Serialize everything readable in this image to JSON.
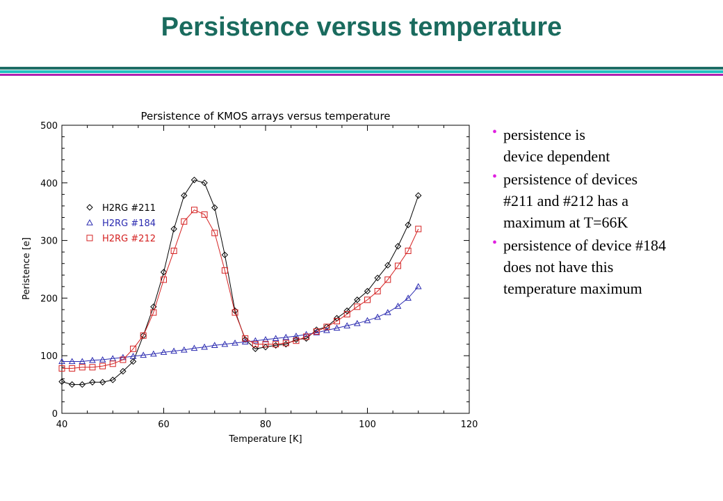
{
  "slide": {
    "title": "Persistence versus temperature",
    "colors": {
      "title": "#1a6b5e",
      "bullet": "#e020e0"
    },
    "rules": [
      "#1d6e66",
      "#22c0c0",
      "#b020b0"
    ]
  },
  "bullets": [
    {
      "text": "persistence is\ndevice dependent"
    },
    {
      "text": "persistence  of devices\n#211 and #212 has a\n maximum at T=66K"
    },
    {
      "text": "persistence of device #184\ndoes not have this\ntemperature maximum"
    }
  ],
  "chart_data": {
    "type": "line",
    "title": "Persistence of KMOS arrays versus temperature",
    "xlabel": "Temperature [K]",
    "ylabel": "Peristence [e]",
    "xlim": [
      40,
      120
    ],
    "ylim": [
      0,
      500
    ],
    "xticks": [
      40,
      60,
      80,
      100,
      120
    ],
    "yticks": [
      0,
      100,
      200,
      300,
      400,
      500
    ],
    "x": [
      40,
      42,
      44,
      46,
      48,
      50,
      52,
      54,
      56,
      58,
      60,
      62,
      64,
      66,
      68,
      70,
      72,
      74,
      76,
      78,
      80,
      82,
      84,
      86,
      88,
      90,
      92,
      94,
      96,
      98,
      100,
      102,
      104,
      106,
      108,
      110
    ],
    "series": [
      {
        "name": "H2RG #211",
        "color": "#000000",
        "marker": "diamond",
        "values": [
          55,
          50,
          50,
          54,
          54,
          58,
          73,
          90,
          135,
          185,
          245,
          320,
          378,
          405,
          400,
          357,
          275,
          178,
          128,
          112,
          115,
          118,
          120,
          128,
          130,
          145,
          150,
          165,
          178,
          197,
          212,
          235,
          257,
          290,
          327,
          378
        ]
      },
      {
        "name": "H2RG #184",
        "color": "#2a2ab0",
        "marker": "triangle",
        "values": [
          90,
          90,
          90,
          92,
          93,
          95,
          97,
          99,
          101,
          103,
          106,
          108,
          110,
          113,
          115,
          118,
          120,
          122,
          124,
          126,
          128,
          130,
          132,
          134,
          137,
          140,
          144,
          148,
          152,
          156,
          161,
          167,
          175,
          186,
          200,
          220
        ]
      },
      {
        "name": "H2RG #212",
        "color": "#d42020",
        "marker": "square",
        "values": [
          78,
          78,
          80,
          80,
          82,
          86,
          93,
          112,
          135,
          175,
          232,
          282,
          333,
          353,
          345,
          313,
          248,
          175,
          130,
          120,
          120,
          120,
          122,
          126,
          133,
          142,
          150,
          160,
          172,
          185,
          197,
          212,
          232,
          256,
          282,
          320
        ]
      }
    ]
  }
}
